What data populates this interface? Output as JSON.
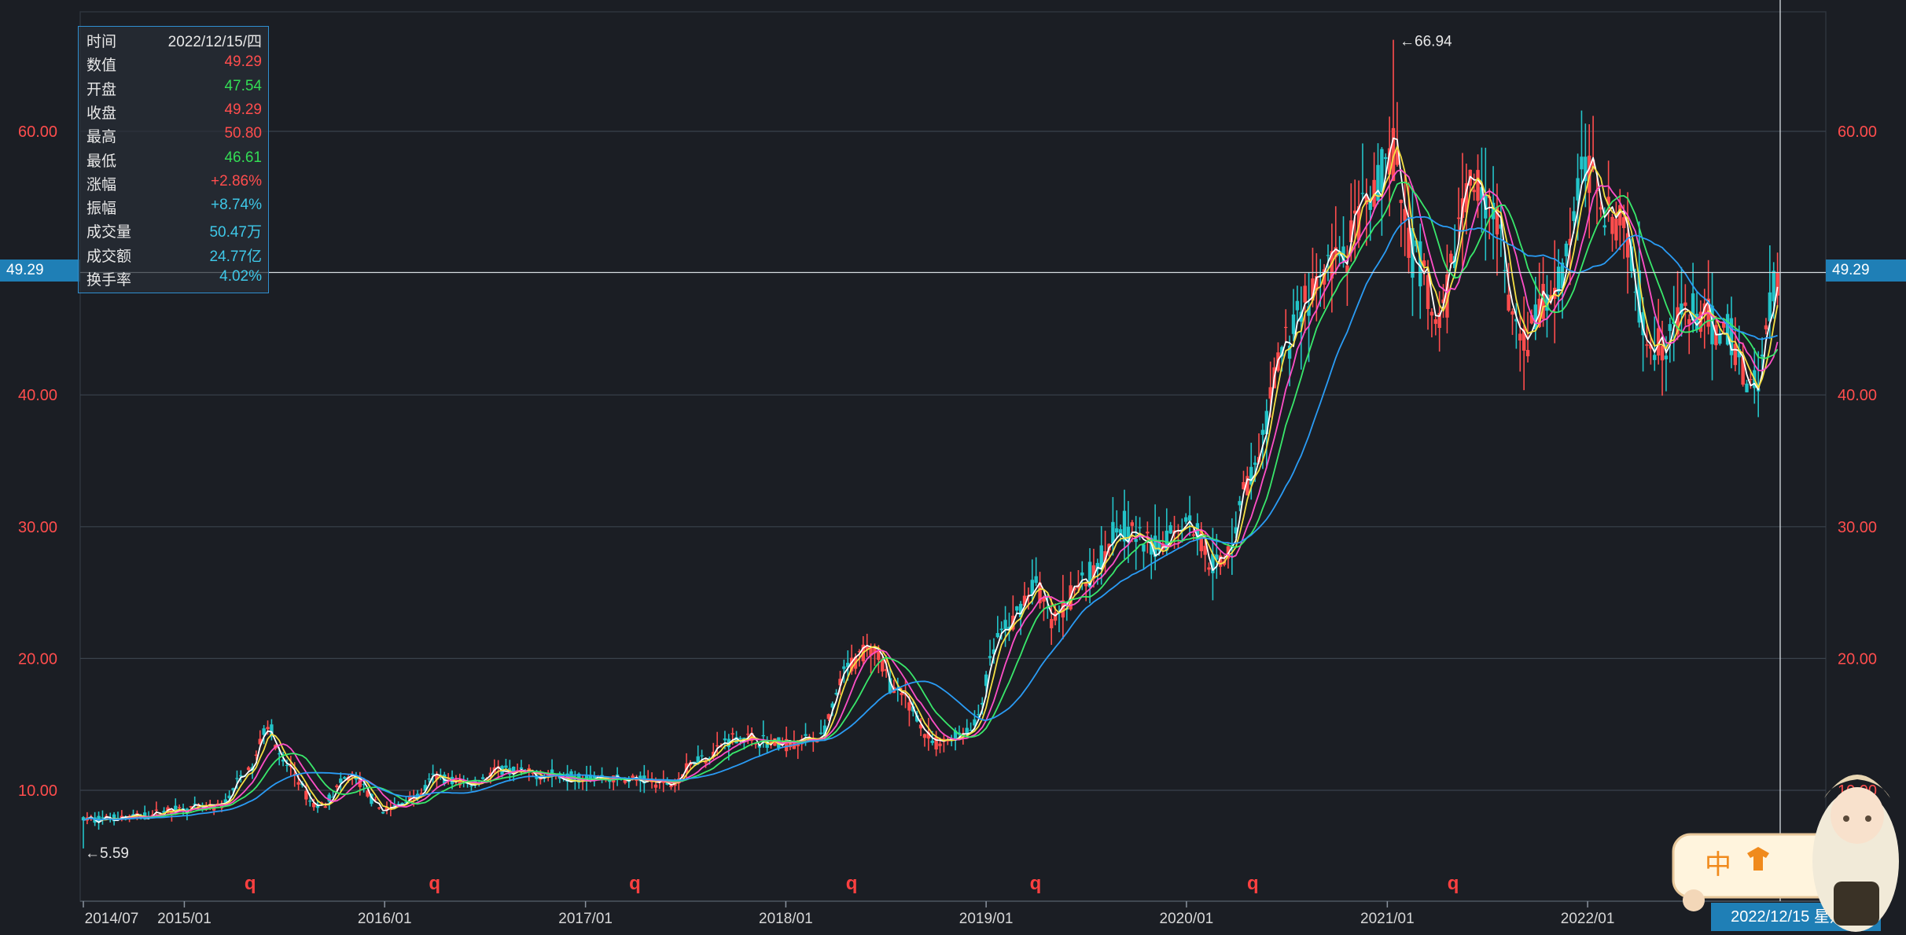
{
  "info_panel": {
    "rows": [
      {
        "label": "时间",
        "value": "2022/12/15/四",
        "color": "#e8e8e8"
      },
      {
        "label": "数值",
        "value": "49.29",
        "color": "#ff4d4d"
      },
      {
        "label": "开盘",
        "value": "47.54",
        "color": "#33dd55"
      },
      {
        "label": "收盘",
        "value": "49.29",
        "color": "#ff4d4d"
      },
      {
        "label": "最高",
        "value": "50.80",
        "color": "#ff4d4d"
      },
      {
        "label": "最低",
        "value": "46.61",
        "color": "#33dd55"
      },
      {
        "label": "涨幅",
        "value": "+2.86%",
        "color": "#ff4d4d"
      },
      {
        "label": "振幅",
        "value": "+8.74%",
        "color": "#3ec8e8"
      },
      {
        "label": "成交量",
        "value": "50.47万",
        "color": "#3ec8e8"
      },
      {
        "label": "成交额",
        "value": "24.77亿",
        "color": "#3ec8e8"
      },
      {
        "label": "换手率",
        "value": "4.02%",
        "color": "#3ec8e8"
      }
    ]
  },
  "price_tag_left": "49.29",
  "price_tag_right": "49.29",
  "crosshair_date": "2022/12/15 星期四",
  "mascot_badge": "中",
  "colors": {
    "up": "#ff4d4d",
    "down": "#23c4c9",
    "ma5": "#ffffff",
    "ma10": "#f5e044",
    "ma20": "#ff4fc8",
    "ma30": "#39e86b",
    "ma60": "#2a9cf5",
    "grid": "#3a424c",
    "axis_text": "#ff4d4d"
  },
  "chart_data": {
    "type": "candlestick",
    "ylim": [
      3,
      70
    ],
    "y_ticks": [
      "10.00",
      "20.00",
      "30.00",
      "40.00",
      "60.00"
    ],
    "y_tick_values": [
      10,
      20,
      30,
      40,
      60
    ],
    "x_tick_labels": [
      "2014/07",
      "2015/01",
      "2016/01",
      "2017/01",
      "2018/01",
      "2019/01",
      "2020/01",
      "2021/01",
      "2022/01"
    ],
    "x_tick_dates": [
      "2014-07",
      "2015-01",
      "2016-01",
      "2017-01",
      "2018-01",
      "2019-01",
      "2020-01",
      "2021-01",
      "2022-01"
    ],
    "x_end": "2022-12-15",
    "max_annotation": {
      "date": "2021-01",
      "value": 66.94,
      "text": "←66.94"
    },
    "min_annotation": {
      "date": "2014-07",
      "value": 5.59,
      "text": "←5.59"
    },
    "markers": {
      "label": "q",
      "dates": [
        "2015-05",
        "2016-04",
        "2017-04",
        "2018-05",
        "2019-04",
        "2020-05",
        "2021-05"
      ]
    },
    "crosshair_value": 49.29,
    "price_path": [
      [
        "2014-07",
        7.8
      ],
      [
        "2014-10",
        8.0
      ],
      [
        "2015-01",
        8.6
      ],
      [
        "2015-03",
        8.7
      ],
      [
        "2015-05",
        11.5
      ],
      [
        "2015-06",
        15.0
      ],
      [
        "2015-07",
        12.0
      ],
      [
        "2015-09",
        8.8
      ],
      [
        "2015-11",
        11.0
      ],
      [
        "2016-01",
        8.5
      ],
      [
        "2016-03",
        9.5
      ],
      [
        "2016-04",
        11.0
      ],
      [
        "2016-06",
        10.5
      ],
      [
        "2016-08",
        11.5
      ],
      [
        "2016-10",
        11.2
      ],
      [
        "2017-01",
        11.0
      ],
      [
        "2017-04",
        10.8
      ],
      [
        "2017-06",
        10.5
      ],
      [
        "2017-08",
        12.5
      ],
      [
        "2017-10",
        14.0
      ],
      [
        "2018-01",
        13.5
      ],
      [
        "2018-03",
        14.0
      ],
      [
        "2018-05",
        19.5
      ],
      [
        "2018-06",
        21.0
      ],
      [
        "2018-08",
        17.0
      ],
      [
        "2018-10",
        13.5
      ],
      [
        "2018-12",
        14.5
      ],
      [
        "2019-02",
        22.0
      ],
      [
        "2019-04",
        25.5
      ],
      [
        "2019-05",
        23.0
      ],
      [
        "2019-07",
        26.0
      ],
      [
        "2019-09",
        30.0
      ],
      [
        "2019-11",
        28.5
      ],
      [
        "2020-01",
        30.5
      ],
      [
        "2020-03",
        27.0
      ],
      [
        "2020-05",
        34.0
      ],
      [
        "2020-07",
        44.0
      ],
      [
        "2020-08",
        47.0
      ],
      [
        "2020-10",
        50.0
      ],
      [
        "2020-12",
        54.0
      ],
      [
        "2021-01",
        58.0
      ],
      [
        "2021-03",
        50.0
      ],
      [
        "2021-04",
        45.0
      ],
      [
        "2021-06",
        56.0
      ],
      [
        "2021-07",
        55.5
      ],
      [
        "2021-09",
        44.0
      ],
      [
        "2021-11",
        48.0
      ],
      [
        "2022-01",
        57.0
      ],
      [
        "2022-03",
        53.0
      ],
      [
        "2022-05",
        44.0
      ],
      [
        "2022-07",
        46.0
      ],
      [
        "2022-09",
        45.0
      ],
      [
        "2022-11",
        41.0
      ],
      [
        "2022-12-15",
        49.29
      ]
    ],
    "ma_series": [
      {
        "key": "ma5",
        "lag_months": 0.4
      },
      {
        "key": "ma10",
        "lag_months": 1.0
      },
      {
        "key": "ma20",
        "lag_months": 2.0
      },
      {
        "key": "ma30",
        "lag_months": 3.0
      },
      {
        "key": "ma60",
        "lag_months": 6.0
      }
    ]
  }
}
